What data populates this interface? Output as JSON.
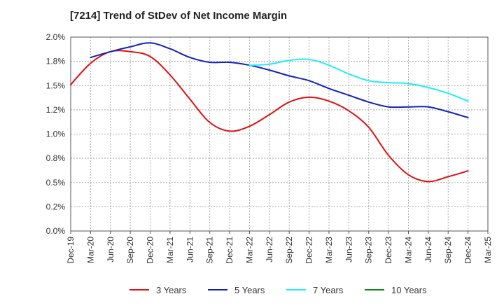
{
  "title": "[7214]  Trend of StDev of Net Income Margin",
  "chart_data": {
    "type": "line",
    "title": "[7214]  Trend of StDev of Net Income Margin",
    "xlabel": "",
    "ylabel": "",
    "x": [
      "Dec-19",
      "Mar-20",
      "Jun-20",
      "Sep-20",
      "Dec-20",
      "Mar-21",
      "Jun-21",
      "Sep-21",
      "Dec-21",
      "Mar-22",
      "Jun-22",
      "Sep-22",
      "Dec-22",
      "Mar-23",
      "Jun-23",
      "Sep-23",
      "Dec-23",
      "Mar-24",
      "Jun-24",
      "Sep-24",
      "Dec-24",
      "Mar-25"
    ],
    "y_ticks": [
      "0.0%",
      "0.2%",
      "0.5%",
      "0.8%",
      "1.0%",
      "1.2%",
      "1.5%",
      "1.8%",
      "2.0%"
    ],
    "ylim": [
      0,
      2.0
    ],
    "grid": true,
    "legend_position": "bottom",
    "series": [
      {
        "name": "3 Years",
        "color": "#dd1111",
        "values": [
          1.51,
          1.73,
          1.85,
          1.85,
          1.8,
          1.61,
          1.36,
          1.12,
          1.03,
          1.08,
          1.2,
          1.33,
          1.38,
          1.34,
          1.24,
          1.07,
          0.78,
          0.58,
          0.51,
          0.56,
          0.62,
          null
        ]
      },
      {
        "name": "5 Years",
        "color": "#1122bb",
        "values": [
          null,
          1.79,
          1.85,
          1.9,
          1.94,
          1.88,
          1.79,
          1.74,
          1.74,
          1.71,
          1.66,
          1.6,
          1.55,
          1.47,
          1.4,
          1.33,
          1.28,
          1.28,
          1.28,
          1.23,
          1.17,
          null
        ]
      },
      {
        "name": "7 Years",
        "color": "#22eeee",
        "values": [
          null,
          null,
          null,
          null,
          null,
          null,
          null,
          null,
          null,
          1.71,
          1.72,
          1.76,
          1.77,
          1.71,
          1.62,
          1.55,
          1.53,
          1.52,
          1.48,
          1.42,
          1.34,
          null
        ]
      },
      {
        "name": "10 Years",
        "color": "#118811",
        "values": [
          null,
          null,
          null,
          null,
          null,
          null,
          null,
          null,
          null,
          null,
          null,
          null,
          null,
          null,
          null,
          null,
          null,
          null,
          null,
          null,
          null,
          null
        ]
      }
    ]
  }
}
